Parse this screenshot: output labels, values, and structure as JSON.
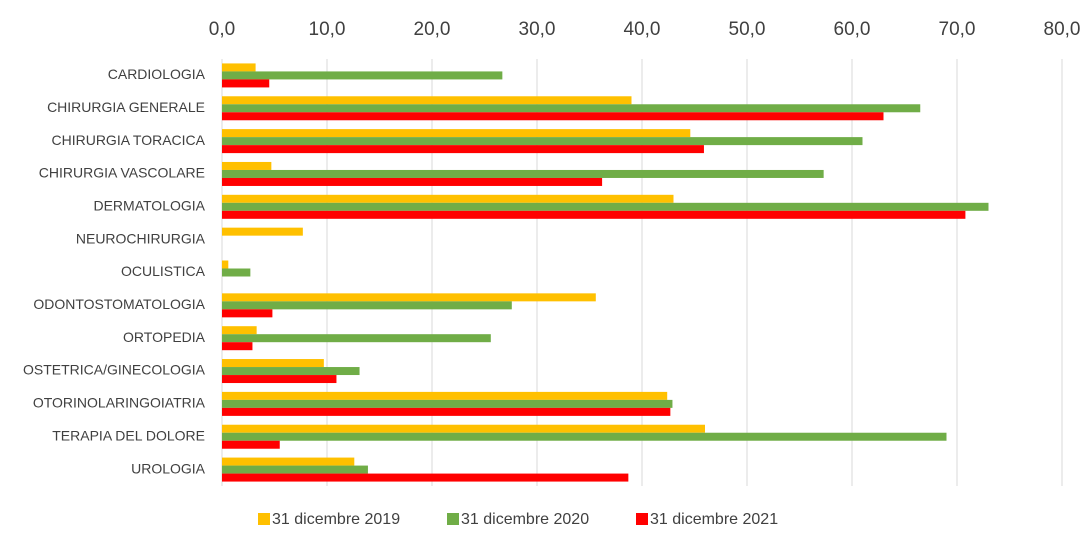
{
  "chart_data": {
    "type": "bar",
    "orientation": "horizontal",
    "categories": [
      "CARDIOLOGIA",
      "CHIRURGIA GENERALE",
      "CHIRURGIA TORACICA",
      "CHIRURGIA VASCOLARE",
      "DERMATOLOGIA",
      "NEUROCHIRURGIA",
      "OCULISTICA",
      "ODONTOSTOMATOLOGIA",
      "ORTOPEDIA",
      "OSTETRICA/GINECOLOGIA",
      "OTORINOLARINGOIATRIA",
      "TERAPIA DEL DOLORE",
      "UROLOGIA"
    ],
    "series": [
      {
        "name": "31 dicembre 2019",
        "color": "#ffc000",
        "values": [
          3.2,
          39.0,
          44.6,
          4.7,
          43.0,
          7.7,
          0.6,
          35.6,
          3.3,
          9.7,
          42.4,
          46.0,
          12.6
        ]
      },
      {
        "name": "31 dicembre 2020",
        "color": "#70ad47",
        "values": [
          26.7,
          66.5,
          61.0,
          57.3,
          73.0,
          null,
          2.7,
          27.6,
          25.6,
          13.1,
          42.9,
          69.0,
          13.9
        ]
      },
      {
        "name": "31 dicembre 2021",
        "color": "#ff0000",
        "values": [
          4.5,
          63.0,
          45.9,
          36.2,
          70.8,
          null,
          null,
          4.8,
          2.9,
          10.9,
          42.7,
          5.5,
          38.7
        ]
      }
    ],
    "xlim": [
      0,
      80
    ],
    "xticks": [
      {
        "value": 0,
        "label": "0,0"
      },
      {
        "value": 10,
        "label": "10,0"
      },
      {
        "value": 20,
        "label": "20,0"
      },
      {
        "value": 30,
        "label": "30,0"
      },
      {
        "value": 40,
        "label": "40,0"
      },
      {
        "value": 50,
        "label": "50,0"
      },
      {
        "value": 60,
        "label": "60,0"
      },
      {
        "value": 70,
        "label": "70,0"
      },
      {
        "value": 80,
        "label": "80,0"
      }
    ],
    "grid": true,
    "legend": "bottom"
  }
}
